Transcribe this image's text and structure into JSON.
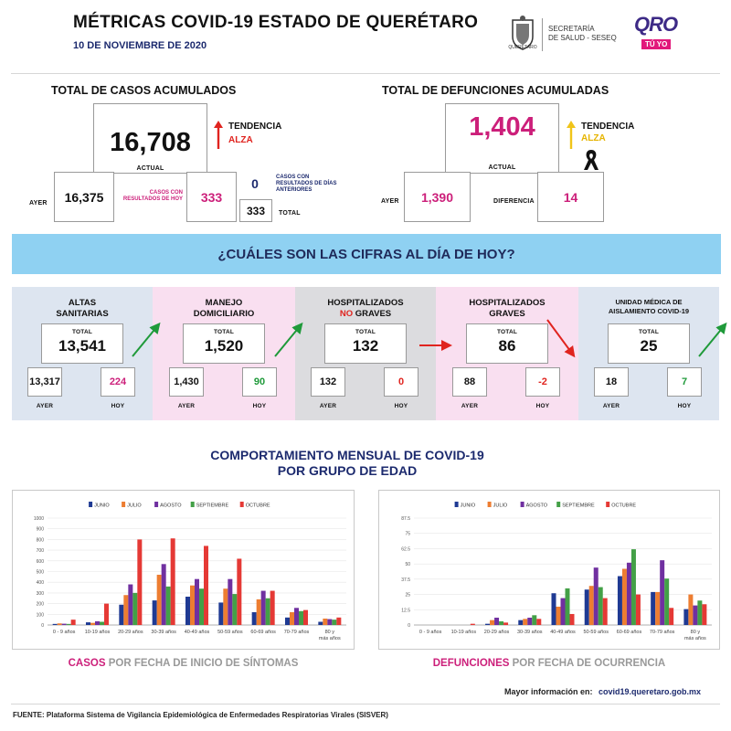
{
  "header": {
    "title": "MÉTRICAS COVID-19 ESTADO DE QUERÉTARO",
    "date": "10 DE NOVIEMBRE DE 2020",
    "secretaria_line1": "SECRETARÍA",
    "secretaria_line2": "DE SALUD - SESEQ",
    "seal_caption": "QUERÉTARO",
    "logo_main": "QRO",
    "logo_sub": "TÚ YO"
  },
  "casos": {
    "title": "TOTAL DE CASOS ACUMULADOS",
    "actual_value": "16,708",
    "actual_label": "ACTUAL",
    "tendencia_label": "TENDENCIA",
    "tendencia_value": "ALZA",
    "ayer_label": "AYER",
    "ayer_value": "16,375",
    "hoy_caption": "CASOS CON RESULTADOS DE HOY",
    "hoy_value": "333",
    "anteriores_value": "0",
    "anteriores_caption": "CASOS CON RESULTADOS DE DÍAS ANTERIORES",
    "total_value": "333",
    "total_label": "TOTAL",
    "colors": {
      "trend": "#e0241f",
      "accent": "#cc1f7a"
    }
  },
  "defunciones": {
    "title": "TOTAL DE DEFUNCIONES ACUMULADAS",
    "actual_value": "1,404",
    "actual_label": "ACTUAL",
    "tendencia_label": "TENDENCIA",
    "tendencia_value": "ALZA",
    "ayer_label": "AYER",
    "ayer_value": "1,390",
    "diferencia_label": "DIFERENCIA",
    "diferencia_value": "14",
    "colors": {
      "trend": "#e6b400",
      "accent": "#cc1f7a"
    }
  },
  "banner": {
    "text": "¿CUÁLES SON LAS CIFRAS AL DÍA DE HOY?",
    "color": "#8fd1f2"
  },
  "panels": [
    {
      "title_lines": [
        "ALTAS",
        "SANITARIAS"
      ],
      "total_label": "TOTAL",
      "total": "13,541",
      "ayer": "13,317",
      "hoy": "224",
      "ayer_label": "AYER",
      "hoy_label": "HOY",
      "bg": "#dde5f0",
      "hoy_color": "#cc1f7a",
      "arrow": "up-green"
    },
    {
      "title_lines": [
        "MANEJO",
        "DOMICILIARIO"
      ],
      "total_label": "TOTAL",
      "total": "1,520",
      "ayer": "1,430",
      "hoy": "90",
      "ayer_label": "AYER",
      "hoy_label": "HOY",
      "bg": "#f9dff0",
      "hoy_color": "#1f9a3a",
      "arrow": "up-green"
    },
    {
      "title_lines": [
        "HOSPITALIZADOS",
        "NO GRAVES"
      ],
      "title_highlight": "NO",
      "total_label": "TOTAL",
      "total": "132",
      "ayer": "132",
      "hoy": "0",
      "ayer_label": "AYER",
      "hoy_label": "HOY",
      "bg": "#dcdcdf",
      "hoy_color": "#e0241f",
      "arrow": "right-red"
    },
    {
      "title_lines": [
        "HOSPITALIZADOS",
        "GRAVES"
      ],
      "total_label": "TOTAL",
      "total": "86",
      "ayer": "88",
      "hoy": "-2",
      "ayer_label": "AYER",
      "hoy_label": "HOY",
      "bg": "#f9dff0",
      "hoy_color": "#e0241f",
      "arrow": "down-red"
    },
    {
      "title_lines": [
        "UNIDAD MÉDICA DE",
        "AISLAMIENTO COVID-19"
      ],
      "total_label": "TOTAL",
      "total": "25",
      "ayer": "18",
      "hoy": "7",
      "ayer_label": "AYER",
      "hoy_label": "HOY",
      "bg": "#dde5f0",
      "hoy_color": "#1f9a3a",
      "arrow": "up-green"
    }
  ],
  "section_title": {
    "line1": "COMPORTAMIENTO MENSUAL DE COVID-19",
    "line2": "POR GRUPO DE EDAD"
  },
  "chart_data": [
    {
      "type": "bar",
      "categories": [
        "0 - 9 años",
        "10-19 años",
        "20-29 años",
        "30-39 años",
        "40-49 años",
        "50-59 años",
        "60-69 años",
        "70-79 años",
        "80 y más años"
      ],
      "series": [
        {
          "name": "JUNIO",
          "color": "#1f3a93",
          "values": [
            10,
            25,
            190,
            230,
            265,
            210,
            120,
            70,
            30
          ]
        },
        {
          "name": "JULIO",
          "color": "#ed7d31",
          "values": [
            15,
            20,
            280,
            470,
            370,
            340,
            240,
            120,
            60
          ]
        },
        {
          "name": "AGOSTO",
          "color": "#7030a0",
          "values": [
            12,
            35,
            380,
            570,
            430,
            430,
            320,
            160,
            55
          ]
        },
        {
          "name": "SEPTIEMBRE",
          "color": "#43a047",
          "values": [
            10,
            30,
            300,
            360,
            340,
            290,
            250,
            130,
            50
          ]
        },
        {
          "name": "OCTUBRE",
          "color": "#e53935",
          "values": [
            50,
            200,
            800,
            810,
            740,
            620,
            320,
            140,
            70
          ]
        }
      ],
      "ylim": [
        0,
        1000
      ],
      "yticks": [
        "0",
        "100",
        "200",
        "300",
        "400",
        "500",
        "600",
        "700",
        "800",
        "900",
        "1000"
      ],
      "caption_highlight": "CASOS",
      "caption_rest": " POR FECHA DE INICIO DE SÍNTOMAS",
      "caption_color": "#cc1f7a"
    },
    {
      "type": "bar",
      "categories": [
        "0 - 9 años",
        "10-19 años",
        "20-29 años",
        "30-39 años",
        "40-49 años",
        "50-59 años",
        "60-69 años",
        "70-79 años",
        "80 y más años"
      ],
      "series": [
        {
          "name": "JUNIO",
          "color": "#1f3a93",
          "values": [
            0,
            0,
            1,
            4,
            26,
            29,
            40,
            27,
            13
          ]
        },
        {
          "name": "JULIO",
          "color": "#ed7d31",
          "values": [
            0,
            0,
            4,
            5,
            15,
            32,
            46,
            27,
            25
          ]
        },
        {
          "name": "AGOSTO",
          "color": "#7030a0",
          "values": [
            0,
            0,
            6,
            6,
            22,
            47,
            51,
            53,
            16
          ]
        },
        {
          "name": "SEPTIEMBRE",
          "color": "#43a047",
          "values": [
            0,
            0,
            3,
            8,
            30,
            31,
            62,
            38,
            20
          ]
        },
        {
          "name": "OCTUBRE",
          "color": "#e53935",
          "values": [
            0,
            1,
            2,
            5,
            9,
            22,
            25,
            14,
            17
          ]
        }
      ],
      "ylim": [
        0,
        87.5
      ],
      "yticks": [
        "0",
        "12.5",
        "25",
        "37.5",
        "50",
        "62.5",
        "75",
        "87.5"
      ],
      "caption_highlight": "DEFUNCIONES",
      "caption_rest": " POR FECHA DE OCURRENCIA",
      "caption_color": "#cc1f7a"
    }
  ],
  "more_info": {
    "label": "Mayor información en:",
    "url": "covid19.queretaro.gob.mx"
  },
  "footer": "FUENTE: Plataforma Sistema  de Vigilancia Epidemiológica de Enfermedades Respiratorias Virales (SISVER)",
  "icons": {
    "trend_up": "arrow-up-icon",
    "mourning": "mourning-ribbon-icon",
    "seal": "state-seal-icon"
  }
}
